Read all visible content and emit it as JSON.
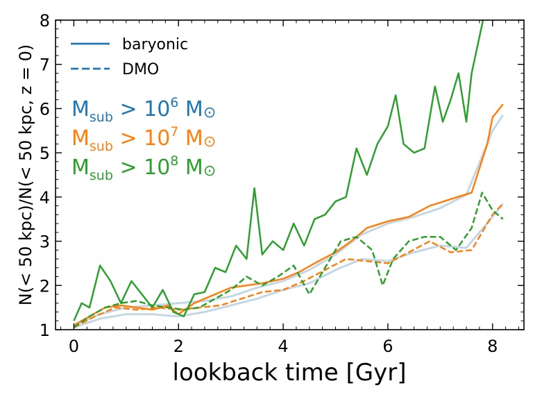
{
  "chart_data": {
    "type": "line",
    "xlabel": "lookback time [Gyr]",
    "ylabel": "N(< 50 kpc)/N(< 50 kpc, z = 0)",
    "xlim": [
      -0.35,
      8.6
    ],
    "ylim": [
      1,
      8
    ],
    "xticks": [
      0,
      2,
      4,
      6,
      8
    ],
    "yticks": [
      1,
      2,
      3,
      4,
      5,
      6,
      7,
      8
    ],
    "grid": false,
    "legend": {
      "placement": "top-left",
      "entries": [
        {
          "label": "baryonic",
          "style": "solid",
          "color": "#1f77b4"
        },
        {
          "label": "DMO",
          "style": "dashed",
          "color": "#1f77b4"
        }
      ]
    },
    "annotations": [
      {
        "base": "M",
        "sub": "sub",
        "rel": " > 10",
        "sup": "6",
        "tail": " M",
        "sym": "⊙",
        "color": "#1f77b4"
      },
      {
        "base": "M",
        "sub": "sub",
        "rel": " > 10",
        "sup": "7",
        "tail": " M",
        "sym": "⊙",
        "color": "#ff7f0e"
      },
      {
        "base": "M",
        "sub": "sub",
        "rel": " > 10",
        "sup": "8",
        "tail": " M",
        "sym": "⊙",
        "color": "#2ca02c"
      }
    ],
    "series": [
      {
        "key": "m6_baryonic",
        "style": "solid",
        "color": "#c3d7e5",
        "x": [
          0,
          0.5,
          1,
          1.5,
          2,
          2.5,
          3,
          3.5,
          4,
          4.5,
          5,
          5.5,
          6,
          6.5,
          7,
          7.5,
          8,
          8.2
        ],
        "y": [
          1.1,
          1.35,
          1.5,
          1.55,
          1.6,
          1.65,
          1.75,
          1.95,
          2.1,
          2.35,
          2.7,
          3.15,
          3.4,
          3.55,
          3.75,
          4.05,
          5.5,
          5.85
        ]
      },
      {
        "key": "m6_dmo",
        "style": "solid",
        "color": "#c3d7e5",
        "x": [
          0,
          0.5,
          1,
          1.5,
          2,
          2.5,
          3,
          3.5,
          4,
          4.5,
          5,
          5.5,
          6,
          6.5,
          7,
          7.5,
          8,
          8.2
        ],
        "y": [
          1.05,
          1.25,
          1.35,
          1.35,
          1.3,
          1.4,
          1.55,
          1.7,
          1.9,
          2.05,
          2.35,
          2.6,
          2.55,
          2.75,
          2.9,
          2.85,
          3.55,
          3.85
        ]
      },
      {
        "key": "m7_baryonic",
        "style": "solid",
        "color": "#ff7f0e",
        "x": [
          0,
          0.3,
          0.6,
          0.9,
          1.2,
          1.5,
          1.8,
          2.0,
          2.3,
          2.6,
          3.0,
          3.3,
          3.6,
          4.0,
          4.3,
          4.6,
          5.0,
          5.3,
          5.6,
          6.0,
          6.4,
          6.8,
          7.2,
          7.6,
          7.9,
          8.0,
          8.2
        ],
        "y": [
          1.1,
          1.3,
          1.5,
          1.55,
          1.5,
          1.45,
          1.55,
          1.35,
          1.6,
          1.75,
          1.95,
          2.0,
          2.05,
          2.15,
          2.3,
          2.5,
          2.75,
          3.0,
          3.3,
          3.45,
          3.55,
          3.8,
          3.95,
          4.1,
          5.2,
          5.8,
          6.1
        ]
      },
      {
        "key": "m7_dmo",
        "style": "dashed",
        "color": "#ff7f0e",
        "x": [
          0,
          0.4,
          0.8,
          1.2,
          1.6,
          2.0,
          2.4,
          2.8,
          3.2,
          3.6,
          4.0,
          4.4,
          4.8,
          5.2,
          5.6,
          6.0,
          6.4,
          6.8,
          7.2,
          7.6,
          8.0,
          8.2
        ],
        "y": [
          1.05,
          1.3,
          1.5,
          1.45,
          1.5,
          1.45,
          1.5,
          1.55,
          1.7,
          1.85,
          1.9,
          2.1,
          2.35,
          2.6,
          2.55,
          2.5,
          2.75,
          3.0,
          2.75,
          2.8,
          3.6,
          3.85
        ]
      },
      {
        "key": "m8_baryonic",
        "style": "solid",
        "color": "#2ca02c",
        "x": [
          0,
          0.15,
          0.3,
          0.5,
          0.7,
          0.9,
          1.1,
          1.3,
          1.5,
          1.7,
          1.9,
          2.1,
          2.3,
          2.5,
          2.7,
          2.9,
          3.1,
          3.3,
          3.45,
          3.6,
          3.8,
          4.0,
          4.2,
          4.4,
          4.6,
          4.8,
          5.0,
          5.2,
          5.4,
          5.6,
          5.8,
          6.0,
          6.15,
          6.3,
          6.5,
          6.7,
          6.9,
          7.05,
          7.2,
          7.35,
          7.5,
          7.6,
          7.8,
          7.85
        ],
        "y": [
          1.2,
          1.6,
          1.5,
          2.45,
          2.1,
          1.6,
          2.1,
          1.8,
          1.5,
          1.9,
          1.4,
          1.3,
          1.8,
          1.85,
          2.4,
          2.3,
          2.9,
          2.6,
          4.2,
          2.7,
          3.0,
          2.8,
          3.4,
          2.9,
          3.5,
          3.6,
          3.9,
          4.0,
          5.1,
          4.5,
          5.2,
          5.6,
          6.3,
          5.2,
          5.0,
          5.1,
          6.5,
          5.7,
          6.2,
          6.8,
          5.7,
          6.8,
          7.9,
          8.2
        ]
      },
      {
        "key": "m8_dmo",
        "style": "dashed",
        "color": "#2ca02c",
        "x": [
          0,
          0.3,
          0.6,
          0.9,
          1.2,
          1.5,
          1.8,
          2.1,
          2.4,
          2.7,
          3.0,
          3.3,
          3.6,
          3.9,
          4.2,
          4.5,
          4.8,
          5.1,
          5.4,
          5.7,
          5.9,
          6.1,
          6.4,
          6.7,
          7.0,
          7.3,
          7.6,
          7.8,
          8.0,
          8.2
        ],
        "y": [
          1.05,
          1.3,
          1.5,
          1.6,
          1.65,
          1.55,
          1.5,
          1.45,
          1.5,
          1.7,
          1.9,
          2.2,
          2.0,
          2.2,
          2.45,
          1.8,
          2.4,
          3.0,
          3.1,
          2.8,
          2.0,
          2.6,
          3.0,
          3.1,
          3.1,
          2.8,
          3.3,
          4.1,
          3.7,
          3.5
        ]
      }
    ]
  }
}
